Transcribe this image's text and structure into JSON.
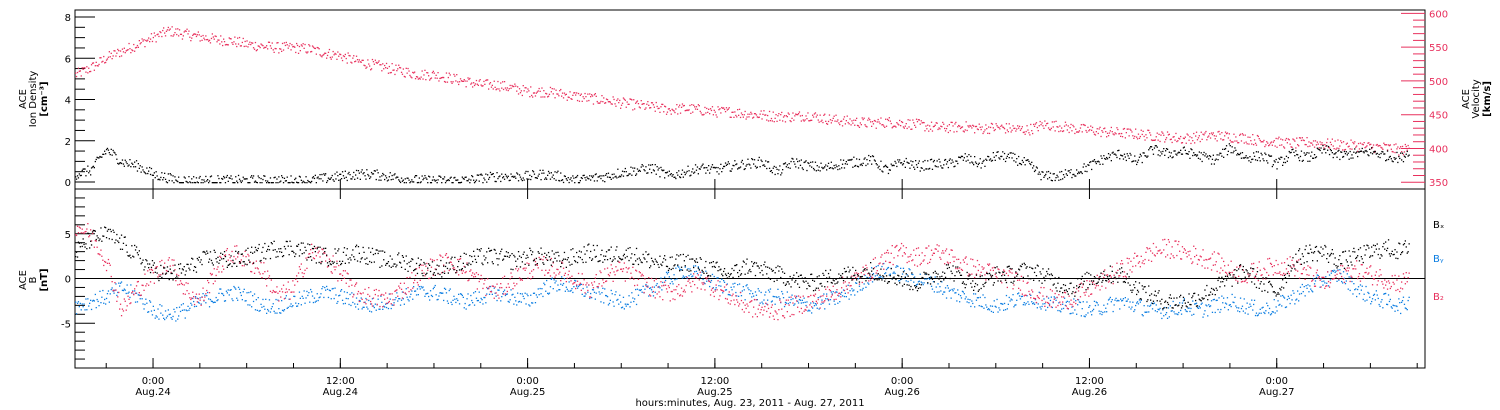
{
  "colors": {
    "black": "#000000",
    "red": "#e8305d",
    "blue": "#0a7de2"
  },
  "chart_data": [
    {
      "type": "scatter",
      "panel": "top",
      "ylabel_left": [
        "ACE",
        "Ion Density",
        "[cm⁻³]"
      ],
      "ylabel_right": [
        "ACE",
        "Velocity",
        "[km/s]"
      ],
      "ylim_left": [
        0,
        8
      ],
      "yticks_left": [
        "0",
        "2",
        "4",
        "6",
        "8"
      ],
      "ylim_right": [
        340,
        605
      ],
      "yticks_right": [
        "350",
        "400",
        "450",
        "500",
        "550",
        "600"
      ],
      "xlim_hours": [
        0,
        86.5
      ],
      "series": [
        {
          "axis": "left",
          "color": "black",
          "noise": 0.25,
          "x": [
            0,
            1,
            2,
            3,
            4,
            5,
            6,
            7,
            8,
            9,
            10,
            11,
            12,
            13,
            14,
            15,
            16,
            17,
            18,
            19,
            20,
            21,
            22,
            23,
            24,
            25,
            26,
            27,
            28,
            29,
            30,
            31,
            32,
            33,
            34,
            35,
            36,
            37,
            38,
            39,
            40,
            41,
            42,
            43,
            44,
            45,
            46,
            47,
            48,
            49,
            50,
            51,
            52,
            53,
            54,
            55,
            56,
            57,
            58,
            59,
            60,
            61,
            62,
            63,
            64,
            65,
            66,
            67,
            68,
            69,
            70,
            71,
            72,
            73,
            74,
            75,
            76,
            77,
            78,
            79,
            80,
            81,
            82,
            83,
            84,
            85,
            85.5
          ],
          "y": [
            0.4,
            0.6,
            1.6,
            1.0,
            0.8,
            0.4,
            0.2,
            0.1,
            0.1,
            0.1,
            0.1,
            0.1,
            0.1,
            0.1,
            0.1,
            0.1,
            0.2,
            0.3,
            0.4,
            0.4,
            0.3,
            0.2,
            0.1,
            0.1,
            0.1,
            0.1,
            0.2,
            0.3,
            0.3,
            0.3,
            0.4,
            0.3,
            0.1,
            0.2,
            0.3,
            0.5,
            0.6,
            0.7,
            0.3,
            0.5,
            0.7,
            0.6,
            0.8,
            0.9,
            1.0,
            0.5,
            1.0,
            0.8,
            0.7,
            0.9,
            1.0,
            1.1,
            0.6,
            1.0,
            0.8,
            0.9,
            0.9,
            1.2,
            0.9,
            1.3,
            1.2,
            0.9,
            0.3,
            0.3,
            0.5,
            0.8,
            1.2,
            1.4,
            1.0,
            1.6,
            1.4,
            1.5,
            1.3,
            1.1,
            1.7,
            1.2,
            1.3,
            0.9,
            1.4,
            1.2,
            1.6,
            1.3,
            1.4,
            1.5,
            1.3,
            1.2,
            1.6
          ]
        },
        {
          "axis": "right",
          "color": "red",
          "noise": 8,
          "x": [
            0,
            1,
            2,
            3,
            4,
            5,
            6,
            7,
            8,
            9,
            10,
            11,
            12,
            13,
            14,
            15,
            16,
            17,
            18,
            19,
            20,
            21,
            22,
            23,
            24,
            25,
            26,
            27,
            28,
            29,
            30,
            31,
            32,
            33,
            34,
            35,
            36,
            37,
            38,
            39,
            40,
            41,
            42,
            43,
            44,
            45,
            46,
            47,
            48,
            49,
            50,
            51,
            52,
            53,
            54,
            55,
            56,
            57,
            58,
            59,
            60,
            61,
            62,
            63,
            64,
            65,
            66,
            67,
            68,
            69,
            70,
            71,
            72,
            73,
            74,
            75,
            76,
            77,
            78,
            79,
            80,
            81,
            82,
            83,
            84,
            85,
            85.5
          ],
          "y": [
            510,
            520,
            535,
            545,
            555,
            565,
            575,
            570,
            566,
            562,
            560,
            555,
            552,
            550,
            550,
            548,
            542,
            538,
            530,
            525,
            520,
            515,
            510,
            510,
            505,
            500,
            495,
            495,
            490,
            485,
            485,
            482,
            478,
            475,
            472,
            468,
            465,
            462,
            458,
            460,
            458,
            455,
            455,
            452,
            450,
            448,
            448,
            450,
            445,
            442,
            440,
            438,
            440,
            438,
            436,
            432,
            432,
            433,
            430,
            432,
            430,
            428,
            436,
            434,
            430,
            428,
            425,
            424,
            422,
            420,
            418,
            415,
            418,
            420,
            418,
            416,
            412,
            410,
            408,
            410,
            408,
            406,
            405,
            403,
            402,
            398,
            402
          ]
        }
      ]
    },
    {
      "type": "scatter",
      "panel": "bottom",
      "ylabel_left": [
        "ACE",
        "B",
        "[nT]"
      ],
      "ylim": [
        -10,
        10
      ],
      "yticks": [
        "-5",
        "0",
        "5"
      ],
      "xlim_hours": [
        0,
        86.5
      ],
      "legend": [
        "Bₓ",
        "Bᵧ",
        "B₂"
      ],
      "legend_colors": [
        "black",
        "blue",
        "red"
      ],
      "series": [
        {
          "name": "Bₓ",
          "color": "black",
          "noise": 1.0,
          "x": [
            0,
            1,
            2,
            3,
            4,
            5,
            6,
            7,
            8,
            9,
            10,
            11,
            12,
            13,
            14,
            15,
            16,
            17,
            18,
            19,
            20,
            21,
            22,
            23,
            24,
            25,
            26,
            27,
            28,
            29,
            30,
            31,
            32,
            33,
            34,
            35,
            36,
            37,
            38,
            39,
            40,
            41,
            42,
            43,
            44,
            45,
            46,
            47,
            48,
            49,
            50,
            51,
            52,
            53,
            54,
            55,
            56,
            57,
            58,
            59,
            60,
            61,
            62,
            63,
            64,
            65,
            66,
            67,
            68,
            69,
            70,
            71,
            72,
            73,
            74,
            75,
            76,
            77,
            78,
            79,
            80,
            81,
            82,
            83,
            84,
            85,
            85.5
          ],
          "y": [
            3.0,
            4.5,
            5.0,
            4.0,
            2.5,
            1.0,
            0.5,
            1.0,
            2.0,
            2.5,
            2.0,
            2.5,
            3.0,
            3.5,
            3.5,
            3.0,
            2.5,
            2.5,
            3.0,
            2.5,
            2.0,
            2.0,
            1.5,
            1.0,
            1.5,
            2.0,
            2.5,
            2.5,
            2.0,
            2.5,
            2.5,
            2.0,
            2.5,
            3.0,
            2.5,
            3.0,
            2.5,
            2.0,
            1.5,
            2.0,
            1.5,
            1.0,
            0.5,
            1.5,
            1.0,
            0.5,
            0.0,
            -0.5,
            0.0,
            0.5,
            0.5,
            1.0,
            0.5,
            0.0,
            -0.5,
            0.5,
            1.0,
            0.0,
            -0.5,
            0.5,
            0.5,
            1.0,
            0.5,
            -0.5,
            -1.0,
            0.0,
            0.5,
            0.5,
            -1.0,
            -2.0,
            -2.5,
            -2.5,
            -2.0,
            -1.0,
            0.0,
            1.0,
            -0.5,
            -1.5,
            2.0,
            3.0,
            3.0,
            2.0,
            2.5,
            3.0,
            3.5,
            3.0,
            4.0
          ]
        },
        {
          "name": "Bᵧ",
          "color": "blue",
          "noise": 0.9,
          "x": [
            0,
            1,
            2,
            3,
            4,
            5,
            6,
            7,
            8,
            9,
            10,
            11,
            12,
            13,
            14,
            15,
            16,
            17,
            18,
            19,
            20,
            21,
            22,
            23,
            24,
            25,
            26,
            27,
            28,
            29,
            30,
            31,
            32,
            33,
            34,
            35,
            36,
            37,
            38,
            39,
            40,
            41,
            42,
            43,
            44,
            45,
            46,
            47,
            48,
            49,
            50,
            51,
            52,
            53,
            54,
            55,
            56,
            57,
            58,
            59,
            60,
            61,
            62,
            63,
            64,
            65,
            66,
            67,
            68,
            69,
            70,
            71,
            72,
            73,
            74,
            75,
            76,
            77,
            78,
            79,
            80,
            81,
            82,
            83,
            84,
            85,
            85.5
          ],
          "y": [
            -3.0,
            -2.5,
            -2.0,
            -1.0,
            -2.0,
            -3.5,
            -4.0,
            -3.5,
            -2.5,
            -2.0,
            -1.5,
            -2.0,
            -3.0,
            -3.0,
            -2.5,
            -2.0,
            -1.5,
            -2.0,
            -2.5,
            -3.0,
            -2.5,
            -2.0,
            -1.5,
            -1.5,
            -2.0,
            -2.5,
            -2.0,
            -1.5,
            -2.0,
            -2.5,
            -1.0,
            -0.5,
            -1.0,
            -1.5,
            -2.0,
            -2.5,
            -2.0,
            -1.0,
            0.0,
            1.0,
            0.5,
            -0.5,
            -1.0,
            -1.5,
            -2.0,
            -2.0,
            -2.5,
            -3.0,
            -2.5,
            -2.0,
            -1.0,
            0.5,
            1.0,
            0.5,
            0.0,
            -0.5,
            -1.5,
            -2.0,
            -2.5,
            -3.0,
            -2.5,
            -2.0,
            -2.5,
            -3.0,
            -3.0,
            -3.5,
            -3.0,
            -2.5,
            -3.0,
            -3.5,
            -3.5,
            -3.0,
            -3.5,
            -3.0,
            -2.5,
            -3.0,
            -3.5,
            -3.0,
            -2.0,
            -1.0,
            0.0,
            0.5,
            -1.0,
            -2.0,
            -2.5,
            -3.0,
            -2.5
          ]
        },
        {
          "name": "B₂",
          "color": "red",
          "noise": 1.1,
          "x": [
            0,
            1,
            2,
            3,
            4,
            5,
            6,
            7,
            8,
            9,
            10,
            11,
            12,
            13,
            14,
            15,
            16,
            17,
            18,
            19,
            20,
            21,
            22,
            23,
            24,
            25,
            26,
            27,
            28,
            29,
            30,
            31,
            32,
            33,
            34,
            35,
            36,
            37,
            38,
            39,
            40,
            41,
            42,
            43,
            44,
            45,
            46,
            47,
            48,
            49,
            50,
            51,
            52,
            53,
            54,
            55,
            56,
            57,
            58,
            59,
            60,
            61,
            62,
            63,
            64,
            65,
            66,
            67,
            68,
            69,
            70,
            71,
            72,
            73,
            74,
            75,
            76,
            77,
            78,
            79,
            80,
            81,
            82,
            83,
            84,
            85,
            85.5
          ],
          "y": [
            6.0,
            5.0,
            2.0,
            -3.5,
            -1.0,
            0.5,
            2.0,
            -1.0,
            -2.5,
            1.0,
            3.0,
            2.0,
            1.0,
            -2.0,
            -1.0,
            3.0,
            2.5,
            0.5,
            -1.5,
            -2.0,
            -2.5,
            -1.0,
            0.5,
            1.5,
            2.0,
            1.0,
            -0.5,
            -1.5,
            0.0,
            1.0,
            1.5,
            1.0,
            0.0,
            -1.0,
            0.5,
            1.0,
            0.0,
            -1.0,
            -1.5,
            -1.0,
            0.0,
            -1.0,
            -2.0,
            -3.0,
            -3.5,
            -3.5,
            -3.0,
            -2.5,
            -2.0,
            -1.0,
            0.0,
            1.0,
            2.5,
            3.0,
            2.5,
            3.0,
            2.5,
            1.5,
            1.0,
            0.5,
            0.0,
            -1.0,
            -2.0,
            -2.5,
            -2.0,
            -1.0,
            0.0,
            1.0,
            2.0,
            3.0,
            3.5,
            3.0,
            2.5,
            2.0,
            1.0,
            0.5,
            1.0,
            1.5,
            1.5,
            0.5,
            -0.5,
            0.5,
            1.0,
            0.5,
            0.0,
            -0.5,
            0.5
          ]
        }
      ]
    }
  ],
  "x_axis": {
    "ticks": [
      {
        "hours": 5,
        "time": "0:00",
        "date": "Aug.24"
      },
      {
        "hours": 17,
        "time": "12:00",
        "date": "Aug.24"
      },
      {
        "hours": 29,
        "time": "0:00",
        "date": "Aug.25"
      },
      {
        "hours": 41,
        "time": "12:00",
        "date": "Aug.25"
      },
      {
        "hours": 53,
        "time": "0:00",
        "date": "Aug.26"
      },
      {
        "hours": 65,
        "time": "12:00",
        "date": "Aug.26"
      },
      {
        "hours": 77,
        "time": "0:00",
        "date": "Aug.27"
      }
    ],
    "xlabel": "hours:minutes, Aug. 23, 2011 - Aug. 27, 2011"
  }
}
